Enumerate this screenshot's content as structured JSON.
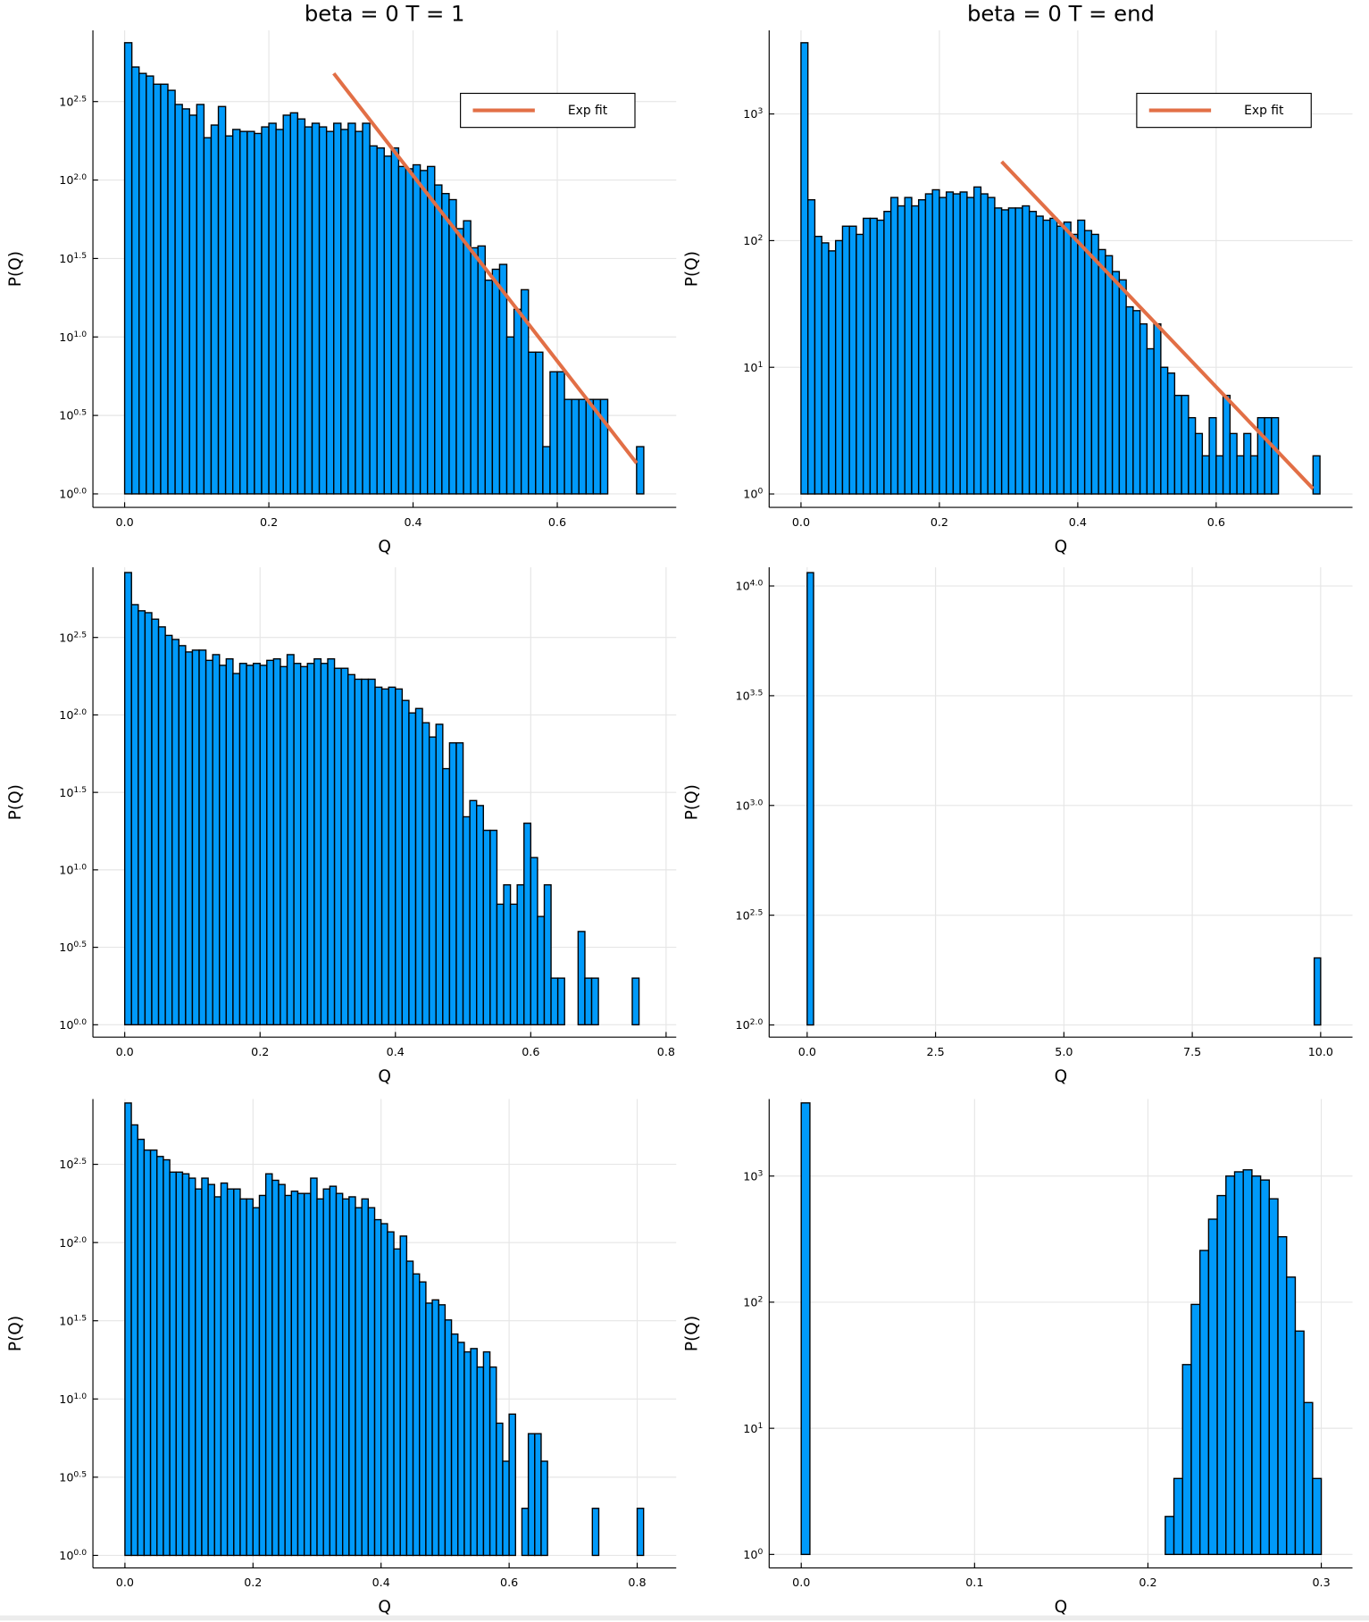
{
  "chart_data": [
    {
      "type": "histogram",
      "title": "beta = 0 T = 1",
      "xlabel": "Q",
      "ylabel": "P(Q)",
      "color": "#009AFA",
      "log_y": true,
      "grid": true,
      "legend": "top right",
      "bins": [
        0,
        0.01,
        0.02,
        0.03,
        0.04,
        0.05,
        0.06,
        0.07,
        0.08,
        0.09,
        0.1,
        0.11,
        0.12,
        0.13,
        0.14,
        0.15,
        0.16,
        0.17,
        0.18,
        0.19,
        0.2,
        0.21,
        0.22,
        0.23,
        0.24,
        0.25,
        0.26,
        0.27,
        0.28,
        0.29,
        0.3,
        0.31,
        0.32,
        0.33,
        0.34,
        0.35,
        0.36,
        0.37,
        0.38,
        0.39,
        0.4,
        0.41,
        0.42,
        0.43,
        0.44,
        0.45,
        0.46,
        0.47,
        0.48,
        0.49,
        0.5,
        0.51,
        0.52,
        0.53,
        0.54,
        0.55,
        0.56,
        0.57,
        0.58,
        0.59,
        0.6,
        0.61,
        0.62,
        0.63,
        0.64,
        0.65,
        0.66,
        0.67,
        0.68,
        0.69,
        0.7,
        0.71,
        0.72
      ],
      "values": [
        750,
        525,
        478,
        460,
        408,
        408,
        373,
        303,
        284,
        259,
        303,
        186,
        224,
        294,
        191,
        210,
        204,
        204,
        198,
        218,
        230,
        210,
        259,
        268,
        245,
        218,
        230,
        218,
        204,
        230,
        210,
        230,
        204,
        230,
        165,
        160,
        142,
        160,
        122,
        118,
        125,
        115,
        122,
        93,
        82,
        75,
        49,
        55,
        37,
        38,
        23,
        27,
        29,
        10,
        15,
        20,
        8,
        8,
        2,
        6,
        6,
        4,
        4,
        4,
        4,
        4,
        4,
        0,
        0,
        0,
        0,
        2
      ],
      "series": [
        {
          "name": "Exp fit",
          "color": "#E26F46",
          "x": [
            0.29,
            0.71
          ],
          "values": [
            478,
            1.57
          ]
        }
      ],
      "xlim": [
        -0.044,
        0.765
      ],
      "xticks": [
        {
          "value": 0,
          "label": "0.0"
        },
        0.2,
        0.4,
        0.6
      ],
      "ylim": [
        0.82,
        899
      ],
      "yticks": [
        {
          "value": 1,
          "label": "10^0.0"
        },
        {
          "value": 3.1623,
          "label": "10^0.5"
        },
        {
          "value": 10,
          "label": "10^1.0"
        },
        {
          "value": 31.623,
          "label": "10^1.5"
        },
        {
          "value": 100,
          "label": "10^2.0"
        },
        {
          "value": 316.23,
          "label": "10^2.5"
        }
      ]
    },
    {
      "type": "histogram",
      "title": "beta = 0 T = end",
      "xlabel": "Q",
      "ylabel": "P(Q)",
      "color": "#009AFA",
      "log_y": true,
      "grid": true,
      "legend": "top right",
      "bins": [
        0,
        0.01,
        0.02,
        0.03,
        0.04,
        0.05,
        0.06,
        0.07,
        0.08,
        0.09,
        0.1,
        0.11,
        0.12,
        0.13,
        0.14,
        0.15,
        0.16,
        0.17,
        0.18,
        0.19,
        0.2,
        0.21,
        0.22,
        0.23,
        0.24,
        0.25,
        0.26,
        0.27,
        0.28,
        0.29,
        0.3,
        0.31,
        0.32,
        0.33,
        0.34,
        0.35,
        0.36,
        0.37,
        0.38,
        0.39,
        0.4,
        0.41,
        0.42,
        0.43,
        0.44,
        0.45,
        0.46,
        0.47,
        0.48,
        0.49,
        0.5,
        0.51,
        0.52,
        0.53,
        0.54,
        0.55,
        0.56,
        0.57,
        0.58,
        0.59,
        0.6,
        0.61,
        0.62,
        0.63,
        0.64,
        0.65,
        0.66,
        0.67,
        0.68,
        0.69,
        0.7,
        0.71,
        0.72,
        0.73,
        0.74,
        0.75
      ],
      "values": [
        3650,
        210,
        108,
        96,
        83,
        100,
        130,
        130,
        112,
        150,
        150,
        145,
        170,
        219,
        188,
        219,
        188,
        210,
        234,
        252,
        219,
        242,
        234,
        242,
        219,
        265,
        234,
        219,
        181,
        175,
        181,
        181,
        188,
        170,
        156,
        145,
        150,
        130,
        140,
        112,
        145,
        120,
        112,
        85,
        76,
        57,
        49,
        30,
        28,
        22,
        14,
        22,
        10,
        9,
        6,
        6,
        4,
        3,
        2,
        4,
        2,
        6,
        3,
        2,
        3,
        2,
        4,
        4,
        4,
        0,
        0,
        0,
        0,
        0,
        2
      ],
      "series": [
        {
          "name": "Exp fit",
          "color": "#E26F46",
          "x": [
            0.29,
            0.74
          ],
          "values": [
            420,
            1.1
          ]
        }
      ],
      "xlim": [
        -0.046,
        0.797
      ],
      "xticks": [
        {
          "value": 0,
          "label": "0.0"
        },
        0.2,
        0.4,
        0.6
      ],
      "ylim": [
        0.783,
        4571
      ],
      "yticks": [
        {
          "value": 1,
          "label": "10^0"
        },
        {
          "value": 10,
          "label": "10^1"
        },
        {
          "value": 100,
          "label": "10^2"
        },
        {
          "value": 1000,
          "label": "10^3"
        }
      ]
    },
    {
      "type": "histogram",
      "xlabel": "Q",
      "ylabel": "P(Q)",
      "color": "#009AFA",
      "log_y": true,
      "grid": true,
      "bins": [
        0,
        0.01,
        0.02,
        0.03,
        0.04,
        0.05,
        0.06,
        0.07,
        0.08,
        0.09,
        0.1,
        0.11,
        0.12,
        0.13,
        0.14,
        0.15,
        0.16,
        0.17,
        0.18,
        0.19,
        0.2,
        0.21,
        0.22,
        0.23,
        0.24,
        0.25,
        0.26,
        0.27,
        0.28,
        0.29,
        0.3,
        0.31,
        0.32,
        0.33,
        0.34,
        0.35,
        0.36,
        0.37,
        0.38,
        0.39,
        0.4,
        0.41,
        0.42,
        0.43,
        0.44,
        0.45,
        0.46,
        0.47,
        0.48,
        0.49,
        0.5,
        0.51,
        0.52,
        0.53,
        0.54,
        0.55,
        0.56,
        0.57,
        0.58,
        0.59,
        0.6,
        0.61,
        0.62,
        0.63,
        0.64,
        0.65,
        0.66,
        0.67,
        0.68,
        0.69,
        0.7,
        0.71,
        0.72,
        0.73,
        0.74,
        0.75,
        0.76
      ],
      "values": [
        830,
        515,
        470,
        457,
        415,
        370,
        326,
        307,
        280,
        255,
        262,
        262,
        225,
        245,
        209,
        230,
        185,
        215,
        209,
        215,
        209,
        225,
        230,
        205,
        245,
        215,
        205,
        215,
        230,
        215,
        230,
        200,
        200,
        182,
        170,
        170,
        170,
        151,
        147,
        151,
        147,
        124,
        103,
        110,
        89,
        72,
        87,
        45,
        66,
        66,
        22,
        28,
        26,
        18,
        18,
        6,
        8,
        6,
        8,
        20,
        12,
        5,
        8,
        2,
        2,
        0,
        0,
        4,
        2,
        2,
        0,
        0,
        0,
        0,
        0,
        2
      ],
      "xlim": [
        -0.047,
        0.815
      ],
      "xticks": [
        {
          "value": 0,
          "label": "0.0"
        },
        0.2,
        0.4,
        0.6,
        0.8
      ],
      "ylim": [
        0.832,
        897
      ],
      "yticks": [
        {
          "value": 1,
          "label": "10^0.0"
        },
        {
          "value": 3.1623,
          "label": "10^0.5"
        },
        {
          "value": 10,
          "label": "10^1.0"
        },
        {
          "value": 31.623,
          "label": "10^1.5"
        },
        {
          "value": 100,
          "label": "10^2.0"
        },
        {
          "value": 316.23,
          "label": "10^2.5"
        }
      ]
    },
    {
      "type": "histogram",
      "xlabel": "Q",
      "ylabel": "P(Q)",
      "color": "#009AFA",
      "log_y": true,
      "grid": true,
      "bins": [
        0,
        0.125,
        0.25,
        0.375,
        0.5,
        0.625,
        0.75,
        0.875,
        1,
        1.125,
        1.25,
        1.375,
        1.5,
        1.625,
        1.75,
        1.875,
        2,
        2.125,
        2.25,
        2.375,
        2.5,
        2.625,
        2.75,
        2.875,
        3,
        3.125,
        3.25,
        3.375,
        3.5,
        3.625,
        3.75,
        3.875,
        4,
        4.125,
        4.25,
        4.375,
        4.5,
        4.625,
        4.75,
        4.875,
        5,
        5.125,
        5.25,
        5.375,
        5.5,
        5.625,
        5.75,
        5.875,
        6,
        6.125,
        6.25,
        6.375,
        6.5,
        6.625,
        6.75,
        6.875,
        7,
        7.125,
        7.25,
        7.375,
        7.5,
        7.625,
        7.75,
        7.875,
        8,
        8.125,
        8.25,
        8.375,
        8.5,
        8.625,
        8.75,
        8.875,
        9,
        9.125,
        9.25,
        9.375,
        9.5,
        9.625,
        9.75,
        9.875,
        10
      ],
      "values": [
        11500,
        0,
        0,
        0,
        0,
        0,
        0,
        0,
        0,
        0,
        0,
        0,
        0,
        0,
        0,
        0,
        0,
        0,
        0,
        0,
        0,
        0,
        0,
        0,
        0,
        0,
        0,
        0,
        0,
        0,
        0,
        0,
        0,
        0,
        0,
        0,
        0,
        0,
        0,
        0,
        0,
        0,
        0,
        0,
        0,
        0,
        0,
        0,
        0,
        0,
        0,
        0,
        0,
        0,
        0,
        0,
        0,
        0,
        0,
        0,
        0,
        0,
        0,
        0,
        0,
        0,
        0,
        0,
        0,
        0,
        0,
        0,
        0,
        0,
        0,
        0,
        0,
        0,
        0,
        202
      ],
      "xlim": [
        -0.74,
        10.62
      ],
      "xticks": [
        {
          "value": 0,
          "label": "0.0"
        },
        2.5,
        {
          "value": 5,
          "label": "5.0"
        },
        7.5,
        {
          "value": 10,
          "label": "10.0"
        }
      ],
      "ylim": [
        88,
        12160
      ],
      "yticks": [
        {
          "value": 100,
          "label": "10^2.0"
        },
        {
          "value": 316.23,
          "label": "10^2.5"
        },
        {
          "value": 1000,
          "label": "10^3.0"
        },
        {
          "value": 3162.3,
          "label": "10^3.5"
        },
        {
          "value": 10000,
          "label": "10^4.0"
        }
      ]
    },
    {
      "type": "histogram",
      "xlabel": "Q",
      "ylabel": "P(Q)",
      "color": "#009AFA",
      "log_y": true,
      "grid": true,
      "bins": [
        0,
        0.01,
        0.02,
        0.03,
        0.04,
        0.05,
        0.06,
        0.07,
        0.08,
        0.09,
        0.1,
        0.11,
        0.12,
        0.13,
        0.14,
        0.15,
        0.16,
        0.17,
        0.18,
        0.19,
        0.2,
        0.21,
        0.22,
        0.23,
        0.24,
        0.25,
        0.26,
        0.27,
        0.28,
        0.29,
        0.3,
        0.31,
        0.32,
        0.33,
        0.34,
        0.35,
        0.36,
        0.37,
        0.38,
        0.39,
        0.4,
        0.41,
        0.42,
        0.43,
        0.44,
        0.45,
        0.46,
        0.47,
        0.48,
        0.49,
        0.5,
        0.51,
        0.52,
        0.53,
        0.54,
        0.55,
        0.56,
        0.57,
        0.58,
        0.59,
        0.6,
        0.61,
        0.62,
        0.63,
        0.64,
        0.65,
        0.66,
        0.67,
        0.68,
        0.69,
        0.7,
        0.71,
        0.72,
        0.73,
        0.74,
        0.75,
        0.76,
        0.77,
        0.78,
        0.79,
        0.8,
        0.81
      ],
      "values": [
        780,
        565,
        457,
        390,
        390,
        355,
        338,
        282,
        282,
        275,
        258,
        220,
        258,
        235,
        196,
        240,
        220,
        220,
        190,
        190,
        167,
        200,
        275,
        250,
        235,
        200,
        213,
        206,
        206,
        258,
        190,
        220,
        229,
        206,
        190,
        196,
        167,
        190,
        167,
        140,
        132,
        117,
        91,
        110,
        76,
        63,
        56,
        41,
        43,
        40,
        32,
        26,
        23,
        20,
        21,
        16,
        20,
        16,
        7,
        4,
        8,
        0,
        2,
        6,
        6,
        4,
        0,
        0,
        0,
        0,
        0,
        0,
        0,
        2,
        0,
        0,
        0,
        0,
        0,
        0,
        2
      ],
      "xlim": [
        -0.05,
        0.861
      ],
      "xticks": [
        {
          "value": 0,
          "label": "0.0"
        },
        0.2,
        0.4,
        0.6,
        0.8
      ],
      "ylim": [
        0.832,
        826
      ],
      "yticks": [
        {
          "value": 1,
          "label": "10^0.0"
        },
        {
          "value": 3.1623,
          "label": "10^0.5"
        },
        {
          "value": 10,
          "label": "10^1.0"
        },
        {
          "value": 31.623,
          "label": "10^1.5"
        },
        {
          "value": 100,
          "label": "10^2.0"
        },
        {
          "value": 316.23,
          "label": "10^2.5"
        }
      ]
    },
    {
      "type": "histogram",
      "xlabel": "Q",
      "ylabel": "P(Q)",
      "color": "#009AFA",
      "log_y": true,
      "grid": true,
      "bins": [
        0,
        0.005,
        0.01,
        0.015,
        0.02,
        0.025,
        0.03,
        0.035,
        0.04,
        0.045,
        0.05,
        0.055,
        0.06,
        0.065,
        0.07,
        0.075,
        0.08,
        0.085,
        0.09,
        0.095,
        0.1,
        0.105,
        0.11,
        0.115,
        0.12,
        0.125,
        0.13,
        0.135,
        0.14,
        0.145,
        0.15,
        0.155,
        0.16,
        0.165,
        0.17,
        0.175,
        0.18,
        0.185,
        0.19,
        0.195,
        0.2,
        0.205,
        0.21,
        0.215,
        0.22,
        0.225,
        0.23,
        0.235,
        0.24,
        0.245,
        0.25,
        0.255,
        0.26,
        0.265,
        0.27,
        0.275,
        0.28,
        0.285,
        0.29,
        0.295,
        0.3
      ],
      "values": [
        3800,
        0,
        0,
        0,
        0,
        0,
        0,
        0,
        0,
        0,
        0,
        0,
        0,
        0,
        0,
        0,
        0,
        0,
        0,
        0,
        0,
        0,
        0,
        0,
        0,
        0,
        0,
        0,
        0,
        0,
        0,
        0,
        0,
        0,
        0,
        0,
        0,
        0,
        0,
        0,
        0,
        0,
        2,
        4,
        32,
        96,
        257,
        455,
        700,
        1000,
        1080,
        1120,
        1000,
        930,
        660,
        330,
        158,
        59,
        16,
        4
      ],
      "xlim": [
        -0.0185,
        0.318
      ],
      "xticks": [
        {
          "value": 0,
          "label": "0.0"
        },
        0.1,
        0.2,
        0.3
      ],
      "ylim": [
        0.782,
        4074
      ],
      "yticks": [
        {
          "value": 1,
          "label": "10^0"
        },
        {
          "value": 10,
          "label": "10^1"
        },
        {
          "value": 100,
          "label": "10^2"
        },
        {
          "value": 1000,
          "label": "10^3"
        }
      ]
    }
  ]
}
